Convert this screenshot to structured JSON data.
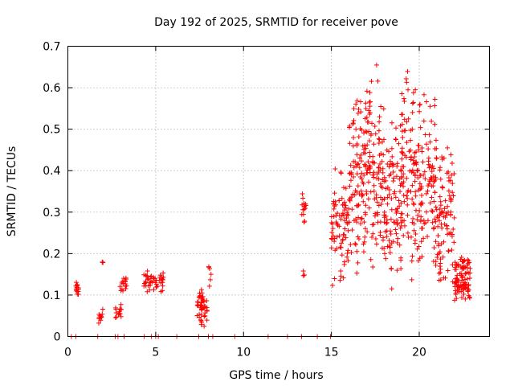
{
  "chart_data": {
    "type": "scatter",
    "title": "Day 192 of 2025, SRMTID for receiver pove",
    "xlabel": "GPS time / hours",
    "ylabel": "SRMTID / TECUs",
    "xlim": [
      0,
      24
    ],
    "ylim": [
      0,
      0.7
    ],
    "xticks": [
      0,
      5,
      10,
      15,
      20
    ],
    "yticks": [
      0,
      0.1,
      0.2,
      0.3,
      0.4,
      0.5,
      0.6,
      0.7
    ],
    "grid": true,
    "marker": "plus",
    "color": "#ff0000",
    "clusters": [
      {
        "x": [
          0.45,
          0.65
        ],
        "y": [
          0.09,
          0.14
        ],
        "n": 14
      },
      {
        "x": [
          1.75,
          2.0
        ],
        "y": [
          0.02,
          0.07
        ],
        "n": 12
      },
      {
        "x": [
          1.9,
          2.0
        ],
        "y": [
          0.17,
          0.19
        ],
        "n": 3
      },
      {
        "x": [
          2.7,
          3.05
        ],
        "y": [
          0.04,
          0.08
        ],
        "n": 14
      },
      {
        "x": [
          2.95,
          3.35
        ],
        "y": [
          0.1,
          0.15
        ],
        "n": 16
      },
      {
        "x": [
          4.3,
          4.75
        ],
        "y": [
          0.1,
          0.16
        ],
        "n": 22
      },
      {
        "x": [
          4.8,
          5.1
        ],
        "y": [
          0.11,
          0.15
        ],
        "n": 10
      },
      {
        "x": [
          5.2,
          5.45
        ],
        "y": [
          0.1,
          0.18
        ],
        "n": 14
      },
      {
        "x": [
          7.35,
          7.65
        ],
        "y": [
          0.03,
          0.12
        ],
        "n": 22
      },
      {
        "x": [
          7.55,
          7.95
        ],
        "y": [
          0.01,
          0.11
        ],
        "n": 26
      },
      {
        "x": [
          8.0,
          8.2
        ],
        "y": [
          0.12,
          0.2
        ],
        "n": 6
      },
      {
        "x": [
          13.3,
          13.55
        ],
        "y": [
          0.27,
          0.36
        ],
        "n": 14
      },
      {
        "x": [
          13.4,
          13.5
        ],
        "y": [
          0.13,
          0.2
        ],
        "n": 3
      },
      {
        "x": [
          15.0,
          16.0
        ],
        "y": [
          0.1,
          0.42
        ],
        "n": 80
      },
      {
        "x": [
          16.0,
          17.0
        ],
        "y": [
          0.13,
          0.64
        ],
        "n": 110
      },
      {
        "x": [
          17.0,
          18.0
        ],
        "y": [
          0.12,
          0.67
        ],
        "n": 110
      },
      {
        "x": [
          18.0,
          19.0
        ],
        "y": [
          0.1,
          0.55
        ],
        "n": 100
      },
      {
        "x": [
          19.0,
          20.0
        ],
        "y": [
          0.1,
          0.66
        ],
        "n": 110
      },
      {
        "x": [
          20.0,
          21.0
        ],
        "y": [
          0.14,
          0.6
        ],
        "n": 100
      },
      {
        "x": [
          21.0,
          22.0
        ],
        "y": [
          0.09,
          0.5
        ],
        "n": 90
      },
      {
        "x": [
          22.0,
          22.9
        ],
        "y": [
          0.07,
          0.2
        ],
        "n": 100
      }
    ],
    "zero_points_x": [
      0.2,
      0.45,
      1.7,
      2.7,
      2.85,
      3.2,
      4.35,
      4.75,
      5.0,
      5.15,
      6.2,
      7.45,
      8.0,
      8.25,
      9.5,
      11.4,
      12.5,
      13.3,
      14.2,
      14.95
    ]
  }
}
